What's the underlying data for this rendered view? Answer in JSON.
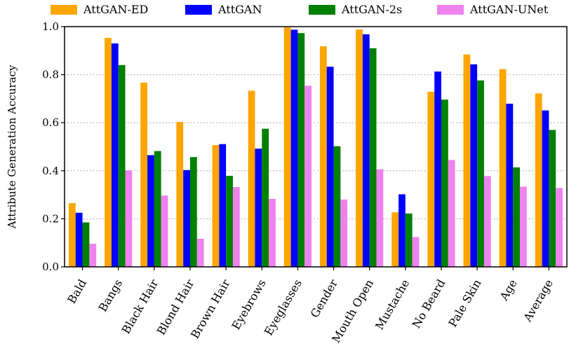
{
  "chart_data": {
    "type": "bar",
    "title": "",
    "xlabel": "",
    "ylabel": "Attribute Generation Accuracy",
    "ylim": [
      0,
      1
    ],
    "yticks": [
      0,
      0.2,
      0.4,
      0.6,
      0.8,
      1.0
    ],
    "ytick_labels": [
      "0.0",
      "0.2",
      "0.4",
      "0.6",
      "0.8",
      "1.0"
    ],
    "grid": "horizontal-dotted",
    "legend_position": "top",
    "categories": [
      "Bald",
      "Bangs",
      "Black Hair",
      "Blond Hair",
      "Brown Hair",
      "Eyebrows",
      "Eyeglasses",
      "Gender",
      "Mouth Open",
      "Mustache",
      "No Beard",
      "Pale Skin",
      "Age",
      "Average"
    ],
    "series": [
      {
        "name": "AttGAN-ED",
        "color": "#FFA500",
        "values": [
          0.265,
          0.953,
          0.767,
          0.603,
          0.507,
          0.733,
          0.997,
          0.918,
          0.988,
          0.227,
          0.729,
          0.884,
          0.823,
          0.722
        ]
      },
      {
        "name": "AttGAN",
        "color": "#0000FF",
        "values": [
          0.225,
          0.93,
          0.465,
          0.403,
          0.511,
          0.492,
          0.987,
          0.833,
          0.968,
          0.302,
          0.813,
          0.843,
          0.679,
          0.651
        ]
      },
      {
        "name": "AttGAN-2s",
        "color": "#008000",
        "values": [
          0.185,
          0.84,
          0.482,
          0.457,
          0.379,
          0.575,
          0.973,
          0.502,
          0.91,
          0.222,
          0.696,
          0.776,
          0.414,
          0.57
        ]
      },
      {
        "name": "AttGAN-UNet",
        "color": "#EE82EE",
        "values": [
          0.096,
          0.402,
          0.297,
          0.117,
          0.332,
          0.283,
          0.754,
          0.28,
          0.406,
          0.124,
          0.445,
          0.378,
          0.334,
          0.328
        ]
      }
    ]
  }
}
